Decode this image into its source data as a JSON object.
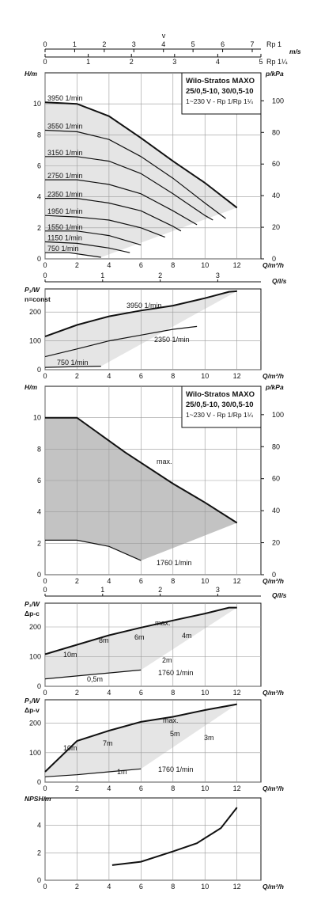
{
  "top_scale": {
    "v_label": "v",
    "top_row": {
      "ticks": [
        "0",
        "1",
        "2",
        "3",
        "4",
        "5",
        "6",
        "7"
      ],
      "label": "Rp 1",
      "unit": "m/s"
    },
    "bottom_row": {
      "ticks": [
        "0",
        "1",
        "2",
        "3",
        "4",
        "5"
      ],
      "label": "Rp 1¼"
    }
  },
  "info_box": {
    "title": "Wilo-Stratos MAXO",
    "models": "25/0,5-10, 30/0,5-10",
    "sub": "1~230 V - Rp 1/Rp 1¼"
  },
  "colors": {
    "envelope": "#e2e2e2",
    "envelope_dark": "#bdbdbd",
    "curve": "#111111",
    "grid": "#9a9a9a"
  },
  "chart_data": [
    {
      "id": "hq-const-speed",
      "type": "line",
      "ylabel": "H/m",
      "y2label": "p/kPa",
      "xlabel": "Q/m³/h",
      "xlim": [
        0,
        13.5
      ],
      "ylim": [
        0,
        12
      ],
      "x_ticks": [
        "0",
        "2",
        "4",
        "6",
        "8",
        "10",
        "12"
      ],
      "y_ticks": [
        "0",
        "2",
        "4",
        "6",
        "8",
        "10"
      ],
      "y2_ticks": [
        "0",
        "20",
        "40",
        "60",
        "80",
        "100"
      ],
      "series": [
        {
          "name": "3950 1/min",
          "values": [
            [
              0,
              10.1
            ],
            [
              2,
              10
            ],
            [
              4,
              9.2
            ],
            [
              6,
              7.8
            ],
            [
              8,
              6.3
            ],
            [
              10,
              4.9
            ],
            [
              12,
              3.3
            ]
          ]
        },
        {
          "name": "3550 1/min",
          "values": [
            [
              0,
              8.3
            ],
            [
              2,
              8.2
            ],
            [
              4,
              7.7
            ],
            [
              6,
              6.6
            ],
            [
              8,
              5.2
            ],
            [
              10,
              3.6
            ],
            [
              11.3,
              2.6
            ]
          ]
        },
        {
          "name": "3150 1/min",
          "values": [
            [
              0,
              6.6
            ],
            [
              2,
              6.6
            ],
            [
              4,
              6.3
            ],
            [
              6,
              5.5
            ],
            [
              8,
              4.2
            ],
            [
              10,
              2.8
            ],
            [
              10.5,
              2.5
            ]
          ]
        },
        {
          "name": "2750 1/min",
          "values": [
            [
              0,
              5.1
            ],
            [
              2,
              5.1
            ],
            [
              4,
              4.8
            ],
            [
              6,
              4.2
            ],
            [
              8,
              3.1
            ],
            [
              9.5,
              2.2
            ]
          ]
        },
        {
          "name": "2350 1/min",
          "values": [
            [
              0,
              3.9
            ],
            [
              2,
              3.9
            ],
            [
              4,
              3.6
            ],
            [
              6,
              3.1
            ],
            [
              8,
              2.1
            ],
            [
              8.5,
              1.8
            ]
          ]
        },
        {
          "name": "1950 1/min",
          "values": [
            [
              0,
              2.8
            ],
            [
              2,
              2.7
            ],
            [
              4,
              2.5
            ],
            [
              6,
              2
            ],
            [
              7.5,
              1.4
            ]
          ]
        },
        {
          "name": "1550 1/min",
          "values": [
            [
              0,
              1.8
            ],
            [
              2,
              1.8
            ],
            [
              4,
              1.5
            ],
            [
              6,
              0.9
            ]
          ]
        },
        {
          "name": "1150 1/min",
          "values": [
            [
              0,
              1.1
            ],
            [
              2,
              1
            ],
            [
              4,
              0.7
            ],
            [
              5.3,
              0.4
            ]
          ]
        },
        {
          "name": "750 1/min",
          "values": [
            [
              0,
              0.4
            ],
            [
              1.5,
              0.4
            ],
            [
              2.5,
              0.25
            ],
            [
              3.5,
              0.1
            ]
          ]
        }
      ]
    },
    {
      "id": "p1-const-speed",
      "type": "line",
      "ylabel": "P₁/W",
      "mode_label": "n=const",
      "xlabel": "Q/m³/h",
      "x2label": "Q/l/s",
      "x2_ticks": [
        "0",
        "1",
        "2",
        "3"
      ],
      "xlim": [
        0,
        13.5
      ],
      "ylim": [
        0,
        280
      ],
      "x_ticks": [
        "0",
        "2",
        "4",
        "6",
        "8",
        "10",
        "12"
      ],
      "y_ticks": [
        "0",
        "100",
        "200"
      ],
      "annotations": [
        "3950 1/min",
        "2350 1/min",
        "750 1/min"
      ],
      "series": [
        {
          "name": "3950 1/min",
          "values": [
            [
              0,
              115
            ],
            [
              2,
              155
            ],
            [
              4,
              185
            ],
            [
              6,
              205
            ],
            [
              8,
              222
            ],
            [
              10,
              248
            ],
            [
              11.5,
              270
            ],
            [
              12,
              272
            ]
          ]
        },
        {
          "name": "2350 1/min",
          "values": [
            [
              0,
              45
            ],
            [
              2,
              72
            ],
            [
              4,
              100
            ],
            [
              6,
              120
            ],
            [
              8,
              140
            ],
            [
              9.5,
              150
            ]
          ]
        },
        {
          "name": "750 1/min",
          "values": [
            [
              0,
              8
            ],
            [
              1.5,
              10
            ],
            [
              3.5,
              12
            ]
          ]
        }
      ]
    },
    {
      "id": "hq-dp-c",
      "type": "line",
      "ylabel": "H/m",
      "y2label": "p/kPa",
      "xlabel": "Q/m³/h",
      "xlim": [
        0,
        13.5
      ],
      "ylim": [
        0,
        12
      ],
      "x_ticks": [
        "0",
        "2",
        "4",
        "6",
        "8",
        "10",
        "12"
      ],
      "y_ticks": [
        "0",
        "2",
        "4",
        "6",
        "8",
        "10"
      ],
      "y2_ticks": [
        "0",
        "20",
        "40",
        "60",
        "80",
        "100"
      ],
      "annotations": [
        "max.",
        "1760 1/min"
      ],
      "series": [
        {
          "name": "max.",
          "values": [
            [
              0,
              10
            ],
            [
              2,
              10
            ],
            [
              5,
              7.8
            ],
            [
              8,
              5.8
            ],
            [
              10,
              4.6
            ],
            [
              12,
              3.3
            ]
          ]
        },
        {
          "name": "1760 1/min",
          "values": [
            [
              0,
              2.2
            ],
            [
              2,
              2.2
            ],
            [
              4,
              1.8
            ],
            [
              6,
              0.9
            ]
          ]
        }
      ]
    },
    {
      "id": "p1-dp-c",
      "type": "line",
      "ylabel": "P₁/W",
      "mode_label": "Δp-c",
      "xlabel": "Q/m³/h",
      "x2label": "Q/l/s",
      "x2_ticks": [
        "0",
        "1",
        "2",
        "3"
      ],
      "xlim": [
        0,
        13.5
      ],
      "ylim": [
        0,
        280
      ],
      "x_ticks": [
        "0",
        "2",
        "4",
        "6",
        "8",
        "10",
        "12"
      ],
      "y_ticks": [
        "0",
        "100",
        "200"
      ],
      "annotations": [
        "10m",
        "8m",
        "6m",
        "4m",
        "2m",
        "0,5m",
        "max.",
        "1760 1/min"
      ],
      "series": [
        {
          "name": "max.",
          "values": [
            [
              0,
              108
            ],
            [
              2,
              140
            ],
            [
              4,
              172
            ],
            [
              6,
              198
            ],
            [
              8,
              222
            ],
            [
              10,
              245
            ],
            [
              11.5,
              265
            ],
            [
              12,
              265
            ]
          ]
        },
        {
          "name": "1760 1/min",
          "values": [
            [
              0,
              25
            ],
            [
              2,
              35
            ],
            [
              4,
              45
            ],
            [
              6,
              55
            ]
          ]
        }
      ]
    },
    {
      "id": "p1-dp-v",
      "type": "line",
      "ylabel": "P₁/W",
      "mode_label": "Δp-v",
      "xlabel": "Q/m³/h",
      "xlim": [
        0,
        13.5
      ],
      "ylim": [
        0,
        280
      ],
      "x_ticks": [
        "0",
        "2",
        "4",
        "6",
        "8",
        "10",
        "12"
      ],
      "y_ticks": [
        "0",
        "100",
        "200"
      ],
      "annotations": [
        "10m",
        "7m",
        "5m",
        "3m",
        "1m",
        "max.",
        "1760 1/min"
      ],
      "series": [
        {
          "name": "max.",
          "values": [
            [
              0,
              35
            ],
            [
              2,
              140
            ],
            [
              4,
              175
            ],
            [
              6,
              205
            ],
            [
              8,
              222
            ],
            [
              10,
              245
            ],
            [
              12,
              265
            ]
          ]
        },
        {
          "name": "1760 1/min",
          "values": [
            [
              0,
              18
            ],
            [
              2,
              25
            ],
            [
              4,
              35
            ],
            [
              6,
              45
            ]
          ]
        }
      ]
    },
    {
      "id": "npsh",
      "type": "line",
      "ylabel": "NPSH/m",
      "xlabel": "Q/m³/h",
      "xlim": [
        0,
        13.5
      ],
      "ylim": [
        0,
        6
      ],
      "x_ticks": [
        "0",
        "2",
        "4",
        "6",
        "8",
        "10",
        "12"
      ],
      "y_ticks": [
        "0",
        "2",
        "4"
      ],
      "series": [
        {
          "name": "",
          "values": [
            [
              4.2,
              1.1
            ],
            [
              6,
              1.35
            ],
            [
              8,
              2.1
            ],
            [
              9.5,
              2.7
            ],
            [
              11,
              3.8
            ],
            [
              12,
              5.3
            ]
          ]
        }
      ]
    }
  ]
}
